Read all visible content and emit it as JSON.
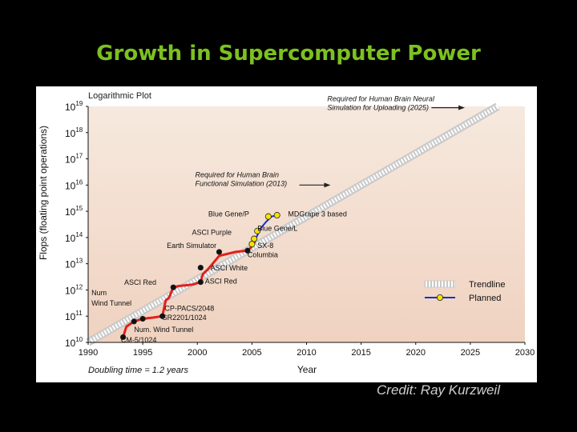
{
  "slide": {
    "title": "Growth in Supercomputer Power",
    "credit": "Credit: Ray Kurzweil",
    "colors": {
      "title": "#7cc11f",
      "background": "#000000",
      "plot_bg_top": "#f6e9de",
      "plot_bg_bottom": "#f0d2c0",
      "actual": "#e0201a",
      "planned": "#1a2ed0",
      "marker_fill": "#f5e400"
    }
  },
  "chart_data": {
    "type": "line",
    "subtitle": "Logarithmic Plot",
    "xlabel": "Year",
    "ylabel": "Flops (floating point operations)",
    "xlim": [
      1990,
      2030
    ],
    "ylim": [
      10,
      19
    ],
    "log_scale_y": true,
    "x_ticks": [
      "1990",
      "1995",
      "2000",
      "2005",
      "2010",
      "2015",
      "2020",
      "2025",
      "2030"
    ],
    "y_ticks": [
      {
        "base": "10",
        "exp": "10"
      },
      {
        "base": "10",
        "exp": "11"
      },
      {
        "base": "10",
        "exp": "12"
      },
      {
        "base": "10",
        "exp": "13"
      },
      {
        "base": "10",
        "exp": "14"
      },
      {
        "base": "10",
        "exp": "15"
      },
      {
        "base": "10",
        "exp": "16"
      },
      {
        "base": "10",
        "exp": "17"
      },
      {
        "base": "10",
        "exp": "18"
      },
      {
        "base": "10",
        "exp": "19"
      }
    ],
    "series": [
      {
        "name": "Trendline",
        "style": "trend",
        "points": [
          [
            1990,
            10.0
          ],
          [
            2027.5,
            19.0
          ]
        ]
      },
      {
        "name": "",
        "style": "actual",
        "points": [
          [
            1993.2,
            10.2
          ],
          [
            1993.5,
            10.6
          ],
          [
            1994.2,
            10.8
          ],
          [
            1995.0,
            10.9
          ],
          [
            1996.0,
            10.95
          ],
          [
            1996.8,
            11.0
          ],
          [
            1997.1,
            11.6
          ],
          [
            1997.4,
            11.7
          ],
          [
            1997.8,
            12.1
          ],
          [
            1998.3,
            12.15
          ],
          [
            1999.5,
            12.2
          ],
          [
            2000.3,
            12.3
          ],
          [
            2000.5,
            12.6
          ],
          [
            2001.0,
            12.8
          ],
          [
            2002.0,
            13.3
          ],
          [
            2003.5,
            13.45
          ],
          [
            2004.6,
            13.5
          ],
          [
            2005.1,
            13.7
          ],
          [
            2005.4,
            14.0
          ]
        ]
      },
      {
        "name": "Planned",
        "style": "planned",
        "points": [
          [
            2005.4,
            14.0
          ],
          [
            2005.8,
            14.35
          ],
          [
            2006.3,
            14.6
          ],
          [
            2006.8,
            14.8
          ],
          [
            2007.3,
            14.85
          ]
        ]
      }
    ],
    "markers": [
      {
        "x": 1993.2,
        "y": 10.2,
        "kind": "actual"
      },
      {
        "x": 1994.2,
        "y": 10.8,
        "kind": "actual"
      },
      {
        "x": 1995.0,
        "y": 10.9,
        "kind": "actual"
      },
      {
        "x": 1996.8,
        "y": 11.0,
        "kind": "actual"
      },
      {
        "x": 1997.8,
        "y": 12.1,
        "kind": "actual"
      },
      {
        "x": 2000.3,
        "y": 12.3,
        "kind": "actual"
      },
      {
        "x": 2000.3,
        "y": 12.85,
        "kind": "actual"
      },
      {
        "x": 2002.0,
        "y": 13.45,
        "kind": "actual"
      },
      {
        "x": 2004.6,
        "y": 13.5,
        "kind": "actual"
      },
      {
        "x": 2005.0,
        "y": 13.75,
        "kind": "planned"
      },
      {
        "x": 2005.2,
        "y": 13.95,
        "kind": "planned"
      },
      {
        "x": 2005.5,
        "y": 14.25,
        "kind": "planned"
      },
      {
        "x": 2006.5,
        "y": 14.8,
        "kind": "planned"
      },
      {
        "x": 2007.3,
        "y": 14.85,
        "kind": "planned"
      }
    ],
    "annotations": [
      {
        "text": "CM-5/1024",
        "x": 1993.0,
        "y": 10.0,
        "anchor": "start"
      },
      {
        "text": "Num. Wind Tunnel",
        "x": 1994.2,
        "y": 10.4,
        "anchor": "start"
      },
      {
        "text": "SR2201/1024",
        "x": 1996.8,
        "y": 10.85,
        "anchor": "start"
      },
      {
        "text": "CP-PACS/2048",
        "x": 1997.0,
        "y": 11.2,
        "anchor": "start"
      },
      {
        "text": "Num",
        "x": 1990.3,
        "y": 11.8,
        "anchor": "start"
      },
      {
        "text": "Wind Tunnel",
        "x": 1990.3,
        "y": 11.4,
        "anchor": "start"
      },
      {
        "text": "ASCI Red",
        "x": 1993.3,
        "y": 12.2,
        "anchor": "start"
      },
      {
        "text": "ASCI Red",
        "x": 2000.7,
        "y": 12.25,
        "anchor": "start"
      },
      {
        "text": "ASCI White",
        "x": 2001.2,
        "y": 12.75,
        "anchor": "start"
      },
      {
        "text": "Earth Simulator",
        "x": 1997.2,
        "y": 13.6,
        "anchor": "start"
      },
      {
        "text": "SX-8",
        "x": 2005.5,
        "y": 13.6,
        "anchor": "start"
      },
      {
        "text": "Columbia",
        "x": 2004.6,
        "y": 13.25,
        "anchor": "start"
      },
      {
        "text": "ASCI Purple",
        "x": 1999.5,
        "y": 14.1,
        "anchor": "start"
      },
      {
        "text": "Blue Gene/L",
        "x": 2005.5,
        "y": 14.25,
        "anchor": "start"
      },
      {
        "text": "Blue Gene/P",
        "x": 2001.0,
        "y": 14.8,
        "anchor": "start"
      },
      {
        "text": "MDGrape 3 based",
        "x": 2008.3,
        "y": 14.8,
        "anchor": "start"
      }
    ],
    "callouts": [
      {
        "lines": [
          "Required for Human Brain",
          "Functional Simulation (2013)"
        ],
        "x": 1999.8,
        "y": 16.3,
        "arrow_to": [
          2012.2,
          16.0
        ]
      },
      {
        "lines": [
          "Required for Human Brain Neural",
          "Simulation for Uploading (2025)"
        ],
        "x": 2011.9,
        "y": 19.2,
        "arrow_to": [
          2024.5,
          18.95
        ]
      }
    ],
    "footnote": "Doubling time = 1.2 years",
    "legend": {
      "position": "right",
      "items": [
        {
          "label": "Trendline",
          "kind": "trend"
        },
        {
          "label": "Planned",
          "kind": "planned"
        }
      ]
    },
    "grid": false
  }
}
